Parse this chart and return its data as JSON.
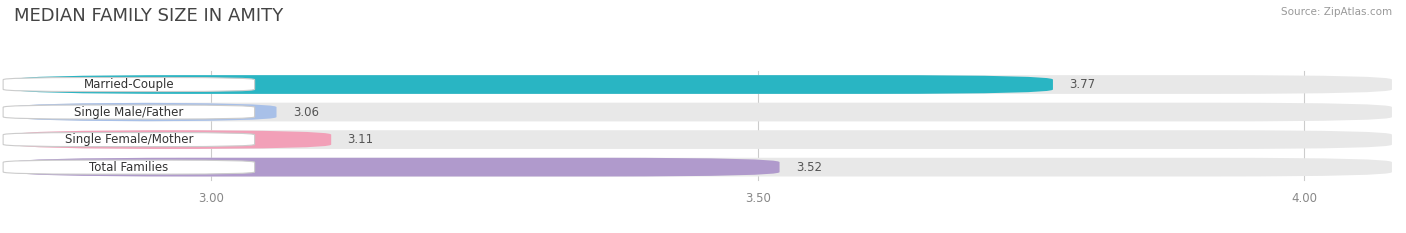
{
  "title": "MEDIAN FAMILY SIZE IN AMITY",
  "source": "Source: ZipAtlas.com",
  "categories": [
    "Married-Couple",
    "Single Male/Father",
    "Single Female/Mother",
    "Total Families"
  ],
  "values": [
    3.77,
    3.06,
    3.11,
    3.52
  ],
  "bar_colors": [
    "#29b5c3",
    "#a8c0e8",
    "#f2a0b8",
    "#b09acc"
  ],
  "xlim_min": 2.82,
  "xlim_max": 4.08,
  "xticks": [
    3.0,
    3.5,
    4.0
  ],
  "xtick_labels": [
    "3.00",
    "3.50",
    "4.00"
  ],
  "background_color": "#ffffff",
  "bar_bg_color": "#e8e8e8",
  "label_fontsize": 8.5,
  "value_fontsize": 8.5,
  "title_fontsize": 13,
  "bar_height": 0.68,
  "bar_gap": 0.32,
  "label_box_color": "#ffffff",
  "label_box_edge_color": "#cccccc",
  "value_color": "#555555",
  "grid_color": "#cccccc",
  "tick_color": "#888888",
  "title_color": "#444444"
}
